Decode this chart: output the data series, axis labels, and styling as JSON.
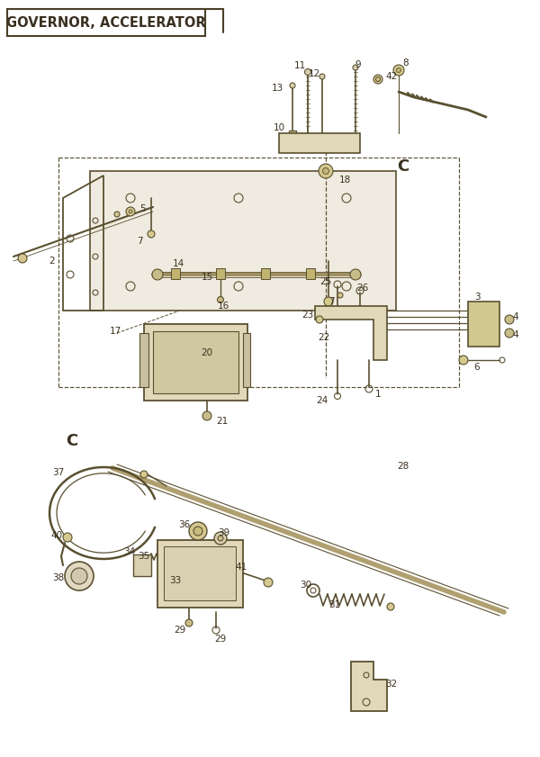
{
  "title": "GOVERNOR, ACCELERATOR",
  "bg_color": "#ffffff",
  "line_color": "#5a5030",
  "text_color": "#3a3020",
  "border_color": "#4a4028",
  "fig_width": 6.0,
  "fig_height": 8.41,
  "dpi": 100
}
